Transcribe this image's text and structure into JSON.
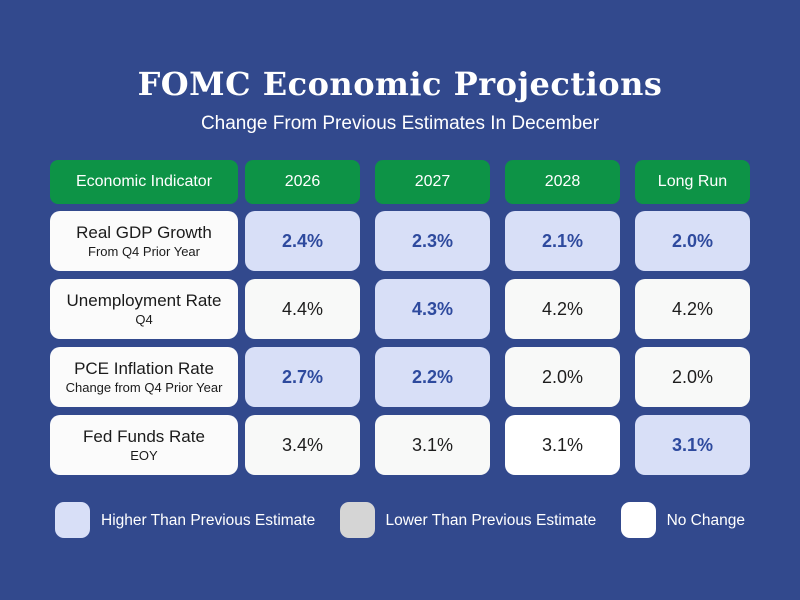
{
  "header": {
    "title": "FOMC Economic Projections",
    "subtitle": "Change From Previous Estimates In December"
  },
  "chart_data": {
    "type": "table",
    "title": "FOMC Economic Projections",
    "subtitle": "Change From Previous Estimates In December",
    "columns": [
      "Economic Indicator",
      "2026",
      "2027",
      "2028",
      "Long Run"
    ],
    "unit": "%",
    "rows": [
      {
        "indicator": "Real GDP Growth",
        "detail": "From Q4 Prior Year",
        "cells": [
          {
            "text": "2.4%",
            "value": 2.4,
            "change": "higher",
            "fill": "lavender"
          },
          {
            "text": "2.3%",
            "value": 2.3,
            "change": "higher",
            "fill": "lavender"
          },
          {
            "text": "2.1%",
            "value": 2.1,
            "change": "higher",
            "fill": "lavender"
          },
          {
            "text": "2.0%",
            "value": 2.0,
            "change": "higher",
            "fill": "lavender"
          }
        ]
      },
      {
        "indicator": "Unemployment Rate",
        "detail": "Q4",
        "cells": [
          {
            "text": "4.4%",
            "value": 4.4,
            "change": "none",
            "fill": "offwhite"
          },
          {
            "text": "4.3%",
            "value": 4.3,
            "change": "higher",
            "fill": "lavender"
          },
          {
            "text": "4.2%",
            "value": 4.2,
            "change": "none",
            "fill": "offwhite"
          },
          {
            "text": "4.2%",
            "value": 4.2,
            "change": "none",
            "fill": "offwhite"
          }
        ]
      },
      {
        "indicator": "PCE Inflation Rate",
        "detail": "Change from Q4 Prior Year",
        "cells": [
          {
            "text": "2.7%",
            "value": 2.7,
            "change": "higher",
            "fill": "lavender"
          },
          {
            "text": "2.2%",
            "value": 2.2,
            "change": "higher",
            "fill": "lavender"
          },
          {
            "text": "2.0%",
            "value": 2.0,
            "change": "none",
            "fill": "offwhite"
          },
          {
            "text": "2.0%",
            "value": 2.0,
            "change": "none",
            "fill": "offwhite"
          }
        ]
      },
      {
        "indicator": "Fed Funds Rate",
        "detail": "EOY",
        "cells": [
          {
            "text": "3.4%",
            "value": 3.4,
            "change": "none",
            "fill": "offwhite"
          },
          {
            "text": "3.1%",
            "value": 3.1,
            "change": "none",
            "fill": "offwhite"
          },
          {
            "text": "3.1%",
            "value": 3.1,
            "change": "none",
            "fill": "white"
          },
          {
            "text": "3.1%",
            "value": 3.1,
            "change": "higher",
            "fill": "lavender"
          }
        ]
      }
    ]
  },
  "legend": {
    "items": [
      {
        "label": "Higher Than Previous Estimate",
        "fill": "lavender"
      },
      {
        "label": "Lower Than Previous Estimate",
        "fill": "gray"
      },
      {
        "label": "No Change",
        "fill": "white"
      }
    ]
  },
  "colors": {
    "background": "#32498D",
    "header_green": "#0D9346",
    "higher_fill": "#D8DFF7",
    "lower_fill": "#D5D5D5",
    "no_change_fill": "#F8F9F8",
    "no_change_bright_fill": "#FFFFFF",
    "higher_text": "#2E4A9E",
    "body_text": "#1B1B1B",
    "header_text": "#FFFFFF"
  }
}
